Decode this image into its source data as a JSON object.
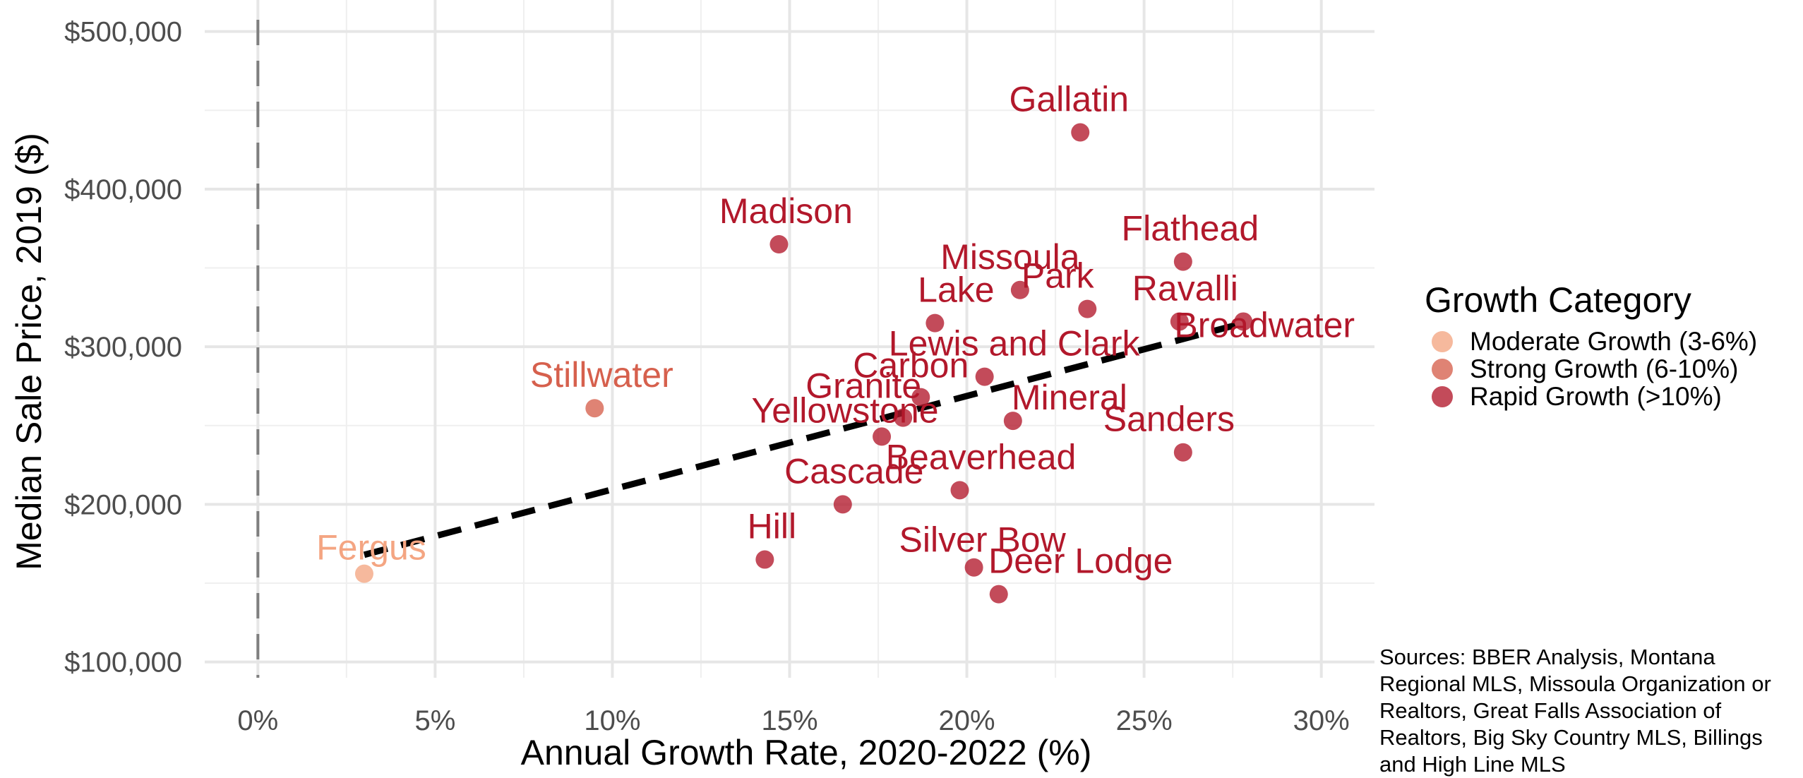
{
  "chart_data": {
    "type": "scatter",
    "xlabel": "Annual Growth Rate, 2020-2022 (%)",
    "ylabel": "Median Sale Price, 2019 ($)",
    "xlim": [
      -1.5,
      31.5
    ],
    "ylim": [
      90000,
      520000
    ],
    "x_ticks": [
      0,
      5,
      10,
      15,
      20,
      25,
      30
    ],
    "x_tick_labels": [
      "0%",
      "5%",
      "10%",
      "15%",
      "20%",
      "25%",
      "30%"
    ],
    "y_ticks": [
      100000,
      200000,
      300000,
      400000,
      500000
    ],
    "y_tick_labels": [
      "$100,000",
      "$200,000",
      "$300,000",
      "$400,000",
      "$500,000"
    ],
    "grid": true,
    "reference_line_x": 0,
    "trend_line": {
      "x": [
        3.0,
        27.8
      ],
      "y": [
        168000,
        315000
      ]
    },
    "legend": {
      "title": "Growth Category",
      "position": "right",
      "items": [
        {
          "label": "Moderate Growth (3-6%)",
          "color": "#F4A582"
        },
        {
          "label": "Strong Growth (6-10%)",
          "color": "#D6604D"
        },
        {
          "label": "Rapid Growth (>10%)",
          "color": "#B2182B"
        }
      ]
    },
    "points": [
      {
        "label": "Fergus",
        "x": 3.0,
        "y": 156000,
        "category": 0
      },
      {
        "label": "Stillwater",
        "x": 9.5,
        "y": 261000,
        "category": 1
      },
      {
        "label": "Hill",
        "x": 14.3,
        "y": 165000,
        "category": 2
      },
      {
        "label": "Madison",
        "x": 14.7,
        "y": 365000,
        "category": 2
      },
      {
        "label": "Cascade",
        "x": 16.5,
        "y": 200000,
        "category": 2
      },
      {
        "label": "Yellowstone",
        "x": 17.6,
        "y": 243000,
        "category": 2
      },
      {
        "label": "Granite",
        "x": 18.2,
        "y": 255000,
        "category": 2
      },
      {
        "label": "Carbon",
        "x": 18.7,
        "y": 268000,
        "category": 2
      },
      {
        "label": "Lake",
        "x": 19.1,
        "y": 315000,
        "category": 2
      },
      {
        "label": "Beaverhead",
        "x": 19.8,
        "y": 209000,
        "category": 2
      },
      {
        "label": "Silver Bow",
        "x": 20.2,
        "y": 160000,
        "category": 2
      },
      {
        "label": "Lewis and Clark",
        "x": 20.5,
        "y": 281000,
        "category": 2
      },
      {
        "label": "Deer Lodge",
        "x": 20.9,
        "y": 143000,
        "category": 2
      },
      {
        "label": "Mineral",
        "x": 21.3,
        "y": 253000,
        "category": 2
      },
      {
        "label": "Missoula",
        "x": 21.5,
        "y": 336000,
        "category": 2
      },
      {
        "label": "Gallatin",
        "x": 23.2,
        "y": 436000,
        "category": 2
      },
      {
        "label": "Park",
        "x": 23.4,
        "y": 324000,
        "category": 2
      },
      {
        "label": "Ravalli",
        "x": 26.0,
        "y": 316000,
        "category": 2
      },
      {
        "label": "Flathead",
        "x": 26.1,
        "y": 354000,
        "category": 2
      },
      {
        "label": "Sanders",
        "x": 26.1,
        "y": 233000,
        "category": 2
      },
      {
        "label": "Broadwater",
        "x": 27.8,
        "y": 316000,
        "category": 2
      }
    ]
  },
  "source_note": "Sources: BBER Analysis, Montana Regional MLS, Missoula Organization or Realtors, Great Falls Association of Realtors, Big Sky Country MLS, Billings and High Line MLS"
}
